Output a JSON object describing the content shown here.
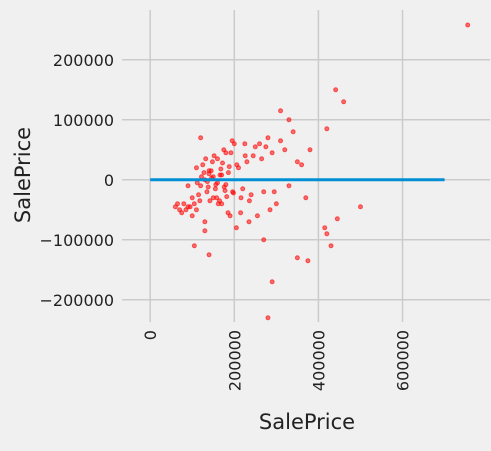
{
  "chart_data": {
    "type": "scatter",
    "x_label": "SalePrice",
    "y_label": "SalePrice",
    "xlim": [
      -67000,
      808000
    ],
    "ylim": [
      -237000,
      283000
    ],
    "xticks": [
      0,
      200000,
      400000,
      600000
    ],
    "yticks": [
      {
        "value": -200000,
        "label": "−200000"
      },
      {
        "value": -100000,
        "label": "−100000"
      },
      0,
      100000,
      200000
    ],
    "grid": true,
    "series": [
      {
        "type": "scatter",
        "color": "#ff0000",
        "x": [
          130000,
          140000,
          120000,
          150000,
          160000,
          110000,
          135000,
          145000,
          155000,
          125000,
          170000,
          180000,
          100000,
          115000,
          128000,
          138000,
          148000,
          158000,
          168000,
          178000,
          188000,
          198000,
          105000,
          118000,
          132000,
          142000,
          152000,
          162000,
          172000,
          182000,
          192000,
          210000,
          220000,
          230000,
          240000,
          95000,
          85000,
          75000,
          65000,
          90000,
          112000,
          122000,
          136000,
          146000,
          156000,
          166000,
          176000,
          186000,
          196000,
          206000,
          216000,
          226000,
          236000,
          250000,
          260000,
          270000,
          280000,
          290000,
          300000,
          310000,
          320000,
          330000,
          340000,
          350000,
          360000,
          370000,
          380000,
          215000,
          225000,
          235000,
          245000,
          255000,
          265000,
          275000,
          285000,
          295000,
          140000,
          150000,
          160000,
          170000,
          180000,
          190000,
          200000,
          130000,
          120000,
          110000,
          100000,
          90000,
          80000,
          70000,
          60000,
          165000,
          175000,
          185000,
          195000,
          205000,
          755000,
          441000,
          460000,
          420000,
          310000,
          415000,
          420000,
          430000,
          445000,
          500000,
          280000,
          290000,
          350000,
          375000,
          270000,
          140000,
          105000,
          130000,
          330000
        ],
        "y": [
          0,
          10000,
          -10000,
          5000,
          -5000,
          20000,
          -20000,
          15000,
          -15000,
          25000,
          8000,
          -8000,
          -30000,
          -25000,
          12000,
          -12000,
          30000,
          -30000,
          18000,
          -18000,
          22000,
          -22000,
          -40000,
          -35000,
          35000,
          -35000,
          40000,
          -40000,
          28000,
          -28000,
          45000,
          20000,
          -15000,
          30000,
          -25000,
          -45000,
          -50000,
          -55000,
          -40000,
          -10000,
          -5000,
          5000,
          -3000,
          3000,
          -8000,
          8000,
          -12000,
          12000,
          -20000,
          25000,
          -30000,
          40000,
          -35000,
          55000,
          60000,
          -20000,
          70000,
          45000,
          -40000,
          65000,
          50000,
          -10000,
          80000,
          30000,
          25000,
          -30000,
          50000,
          -55000,
          60000,
          -70000,
          40000,
          -60000,
          35000,
          55000,
          -50000,
          -20000,
          15000,
          -30000,
          35000,
          -40000,
          45000,
          -60000,
          60000,
          -70000,
          70000,
          -50000,
          -60000,
          -45000,
          -40000,
          -50000,
          -45000,
          -35000,
          50000,
          -55000,
          65000,
          -80000,
          258000,
          150000,
          130000,
          85000,
          115000,
          -80000,
          -90000,
          -110000,
          -65000,
          -45000,
          -230000,
          -170000,
          -130000,
          -135000,
          -100000,
          -125000,
          -110000,
          -85000,
          100000
        ]
      },
      {
        "type": "line",
        "color": "#008fd5",
        "x": [
          0,
          700000
        ],
        "y": [
          0,
          0
        ]
      }
    ]
  }
}
